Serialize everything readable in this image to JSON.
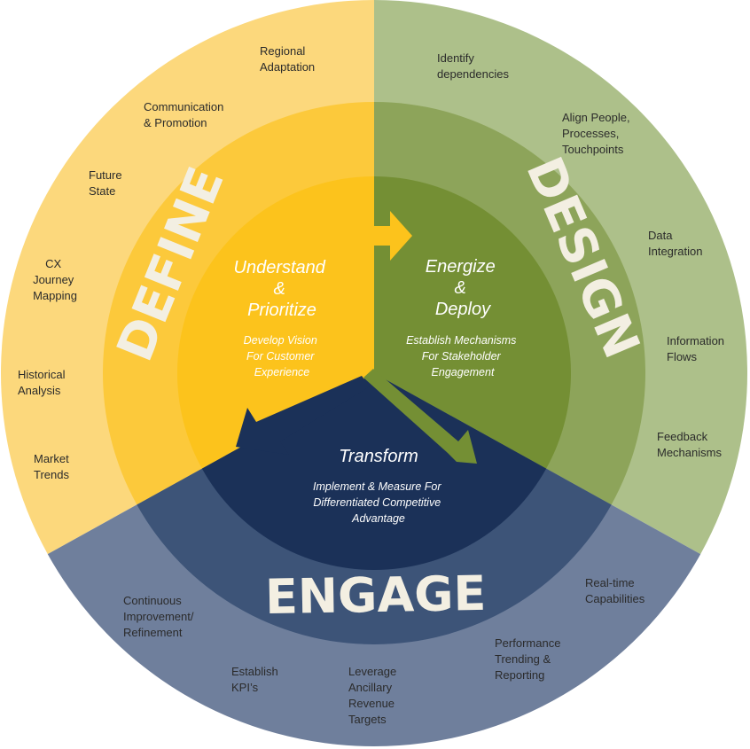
{
  "colors": {
    "define_outer": "#fcd87c",
    "define_mid": "#fcc93b",
    "define_core": "#fcc31c",
    "design_outer": "#adc08a",
    "design_mid": "#8da45a",
    "design_core": "#748f34",
    "engage_outer": "#6f7f9c",
    "engage_mid": "#3d5478",
    "engage_core": "#1b3158",
    "stage_text": "#f3efe2"
  },
  "stages": {
    "define": {
      "title": "DEFINE",
      "core_title_lines": [
        "Understand",
        "&",
        "Prioritize"
      ],
      "core_sub_lines": [
        "Develop Vision",
        "For Customer",
        "Experience"
      ],
      "items": [
        [
          "Regional",
          "Adaptation"
        ],
        [
          "Communication",
          "& Promotion"
        ],
        [
          "Future",
          "State"
        ],
        [
          "CX",
          "Journey",
          "Mapping"
        ],
        [
          "Historical",
          "Analysis"
        ],
        [
          "Market",
          "Trends"
        ]
      ]
    },
    "design": {
      "title": "DESIGN",
      "core_title_lines": [
        "Energize",
        "&",
        "Deploy"
      ],
      "core_sub_lines": [
        "Establish Mechanisms",
        "For Stakeholder",
        "Engagement"
      ],
      "items": [
        [
          "Identify",
          "dependencies"
        ],
        [
          "Align People,",
          "Processes,",
          "Touchpoints"
        ],
        [
          "Data",
          "Integration"
        ],
        [
          "Information",
          "Flows"
        ],
        [
          "Feedback",
          "Mechanisms"
        ]
      ]
    },
    "engage": {
      "title": "ENGAGE",
      "core_title_lines": [
        "Transform"
      ],
      "core_sub_lines": [
        "Implement & Measure For",
        "Differentiated  Competitive",
        "Advantage"
      ],
      "items": [
        [
          "Real-time",
          "Capabilities"
        ],
        [
          "Performance",
          "Trending &",
          "Reporting"
        ],
        [
          "Leverage",
          "Ancillary",
          "Revenue",
          "Targets"
        ],
        [
          "Establish",
          "KPI’s"
        ],
        [
          "Continuous",
          "Improvement/",
          "Refinement"
        ]
      ]
    }
  }
}
